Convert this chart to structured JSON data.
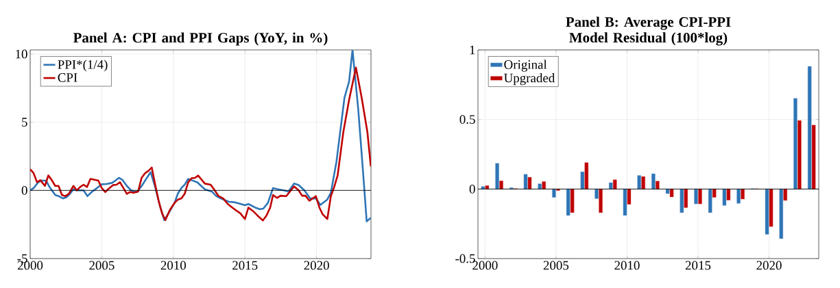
{
  "chart_data": [
    {
      "type": "line",
      "title": "Panel A: CPI and PPI Gaps (YoY, in %)",
      "xlim": [
        2000,
        2023.8
      ],
      "ylim": [
        -5,
        10.3
      ],
      "xticks": [
        2000,
        2005,
        2010,
        2015,
        2020
      ],
      "yticks": [
        10,
        5,
        0,
        -5
      ],
      "grid": true,
      "legend": "top left",
      "line_style": "solid",
      "marker": "none",
      "ref_lines": [
        {
          "axis": "y",
          "value": 0,
          "color": "#000000"
        }
      ],
      "series": [
        {
          "name": "PPI*(1/4)",
          "color": "#2e75b6",
          "x": [
            2000,
            2000.24,
            2000.56,
            2000.79,
            2001.11,
            2001.35,
            2001.75,
            2001.98,
            2002.3,
            2002.54,
            2002.78,
            2003.02,
            2003.25,
            2003.73,
            2004.0,
            2004.29,
            2004.76,
            2005.0,
            2005.32,
            2005.71,
            2005.95,
            2006.19,
            2006.43,
            2006.75,
            2007.06,
            2007.46,
            2007.79,
            2008.1,
            2008.41,
            2008.73,
            2009.05,
            2009.37,
            2009.76,
            2010.08,
            2010.32,
            2010.56,
            2010.79,
            2011.03,
            2011.27,
            2011.67,
            2012.2,
            2012.68,
            2013.0,
            2013.32,
            2013.88,
            2014.28,
            2014.6,
            2015.0,
            2015.24,
            2015.72,
            2016.04,
            2016.28,
            2016.6,
            2016.96,
            2017.32,
            2017.72,
            2018.04,
            2018.43,
            2018.75,
            2019.15,
            2019.55,
            2019.95,
            2020.27,
            2020.75,
            2021.0,
            2021.39,
            2021.95,
            2022.27,
            2022.51,
            2022.91,
            2023.23,
            2023.5,
            2023.79
          ],
          "values": [
            0,
            0.17,
            0.6,
            0.72,
            0.72,
            0.25,
            -0.34,
            -0.42,
            -0.59,
            -0.5,
            -0.25,
            0.08,
            0,
            0,
            -0.42,
            -0.12,
            0.25,
            0.45,
            0.47,
            0.55,
            0.72,
            0.92,
            0.79,
            0.33,
            0,
            -0.12,
            0.33,
            0.84,
            1.34,
            0.25,
            -1.09,
            -2.18,
            -1.51,
            -0.92,
            -0.22,
            0.17,
            0.42,
            0.84,
            0.75,
            0.59,
            0.08,
            -0.08,
            -0.42,
            -0.59,
            -0.84,
            -0.87,
            -0.96,
            -1.09,
            -1.0,
            -1.26,
            -1.38,
            -1.34,
            -0.92,
            0.17,
            0.08,
            0,
            -0.08,
            0.5,
            0.39,
            0,
            -0.59,
            -0.59,
            -1.06,
            -0.67,
            -0.17,
            2.1,
            6.8,
            7.97,
            10.3,
            5.96,
            1.59,
            -2.27,
            -2.01
          ]
        },
        {
          "name": "CPI",
          "color": "#c00000",
          "x": [
            2000,
            2000.24,
            2000.48,
            2000.71,
            2001.03,
            2001.27,
            2001.51,
            2001.75,
            2001.98,
            2002.22,
            2002.46,
            2002.7,
            2003.02,
            2003.25,
            2003.49,
            2003.73,
            2003.97,
            2004.21,
            2004.44,
            2004.76,
            2005.0,
            2005.24,
            2005.48,
            2005.79,
            2006.03,
            2006.27,
            2006.51,
            2006.75,
            2006.98,
            2007.22,
            2007.54,
            2007.78,
            2008.02,
            2008.25,
            2008.49,
            2008.73,
            2008.97,
            2009.21,
            2009.44,
            2009.76,
            2010.08,
            2010.32,
            2010.56,
            2010.79,
            2011.03,
            2011.27,
            2011.51,
            2011.73,
            2012.2,
            2012.6,
            2012.84,
            2013.16,
            2013.48,
            2013.8,
            2014.12,
            2014.44,
            2014.68,
            2015.0,
            2015.24,
            2015.56,
            2015.88,
            2016.25,
            2016.5,
            2016.76,
            2016.96,
            2017.24,
            2017.48,
            2017.88,
            2018.2,
            2018.43,
            2018.75,
            2018.99,
            2019.23,
            2019.5,
            2019.95,
            2020.2,
            2020.43,
            2020.75,
            2021.0,
            2021.23,
            2021.47,
            2021.87,
            2022.27,
            2022.75,
            2023.15,
            2023.55,
            2023.79
          ],
          "values": [
            1.56,
            1.26,
            0.6,
            0.75,
            0.33,
            1.1,
            0.75,
            0.33,
            0.33,
            -0.34,
            -0.42,
            -0.25,
            0.33,
            0,
            0.25,
            0.42,
            0.25,
            0.84,
            0.79,
            0.72,
            0.17,
            -0.12,
            0.12,
            0.39,
            0.42,
            0.6,
            0.17,
            -0.25,
            -0.12,
            -0.17,
            -0.08,
            0.92,
            1.26,
            1.43,
            1.68,
            0.42,
            -0.76,
            -1.68,
            -2.18,
            -1.43,
            -0.92,
            -0.67,
            -0.59,
            -0.25,
            0.59,
            0.89,
            0.92,
            1.09,
            0.5,
            0.42,
            0.08,
            -0.42,
            -0.59,
            -1.0,
            -1.26,
            -1.51,
            -1.68,
            -2.1,
            -1.26,
            -1.51,
            -1.85,
            -2.2,
            -1.85,
            -1.26,
            -0.34,
            -0.55,
            -0.39,
            -0.42,
            0,
            0.29,
            0,
            -0.39,
            -0.39,
            -0.76,
            -0.42,
            -1.26,
            -1.76,
            -2.1,
            -0.42,
            0.25,
            1.09,
            4.28,
            6.63,
            9.01,
            6.8,
            4.28,
            1.76
          ]
        }
      ]
    },
    {
      "type": "bar",
      "title": "Panel B: Average CPI-PPI Model Residual (100*log)",
      "xlim": [
        1999.5,
        2023.5
      ],
      "ylim": [
        -0.5,
        1
      ],
      "xticks": [
        2000,
        2005,
        2010,
        2015,
        2020
      ],
      "yticks": [
        {
          "value": 1,
          "label": "1"
        },
        {
          "value": 0.5,
          "label": "0.5"
        },
        {
          "value": 0,
          "label": "0"
        },
        {
          "value": -0.5,
          "label": "-0.5"
        }
      ],
      "grid": true,
      "legend": "top left",
      "ref_lines": [
        {
          "axis": "y",
          "value": 0,
          "color": "#000000"
        }
      ],
      "x": [
        2000,
        2001,
        2002,
        2003,
        2004,
        2005,
        2006,
        2007,
        2008,
        2009,
        2010,
        2011,
        2012,
        2013,
        2014,
        2015,
        2016,
        2017,
        2018,
        2019,
        2020,
        2021,
        2022,
        2023
      ],
      "series": [
        {
          "name": "Original",
          "color": "#2e75b6",
          "values": [
            0.018,
            0.185,
            0.01,
            0.106,
            0.038,
            -0.06,
            -0.19,
            0.124,
            -0.069,
            0.046,
            -0.19,
            0.098,
            0.11,
            -0.033,
            -0.17,
            -0.107,
            -0.17,
            -0.118,
            -0.103,
            0.003,
            -0.326,
            -0.357,
            0.652,
            0.882
          ]
        },
        {
          "name": "Upgraded",
          "color": "#c00000",
          "values": [
            0.025,
            0.059,
            0.003,
            0.085,
            0.054,
            -0.011,
            -0.17,
            0.19,
            -0.17,
            0.067,
            -0.11,
            0.09,
            0.057,
            -0.057,
            -0.134,
            -0.107,
            -0.06,
            -0.08,
            -0.072,
            0.002,
            -0.27,
            -0.082,
            0.493,
            0.46
          ]
        }
      ]
    }
  ]
}
